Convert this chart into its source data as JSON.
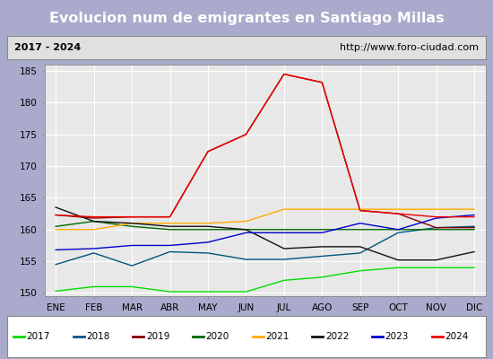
{
  "title": "Evolucion num de emigrantes en Santiago Millas",
  "subtitle_left": "2017 - 2024",
  "subtitle_right": "http://www.foro-ciudad.com",
  "months": [
    "ENE",
    "FEB",
    "MAR",
    "ABR",
    "MAY",
    "JUN",
    "JUL",
    "AGO",
    "SEP",
    "OCT",
    "NOV",
    "DIC"
  ],
  "ylim": [
    149.5,
    186
  ],
  "yticks": [
    150,
    155,
    160,
    165,
    170,
    175,
    180,
    185
  ],
  "series": {
    "2017": {
      "color": "#00dd00",
      "data": [
        150.3,
        151.0,
        151.0,
        150.2,
        150.2,
        150.2,
        152.0,
        152.5,
        153.5,
        154.0,
        154.0,
        154.0
      ]
    },
    "2018": {
      "color": "#005580",
      "data": [
        154.5,
        156.3,
        154.3,
        156.5,
        156.3,
        155.3,
        155.3,
        155.8,
        156.3,
        159.5,
        160.3,
        160.5
      ]
    },
    "2019": {
      "color": "#880000",
      "data": [
        162.3,
        161.8,
        162.0,
        162.0,
        172.3,
        175.0,
        184.5,
        183.2,
        163.0,
        162.5,
        160.3,
        160.3
      ]
    },
    "2020": {
      "color": "#006600",
      "data": [
        160.5,
        161.3,
        160.5,
        160.0,
        160.0,
        160.0,
        160.0,
        160.0,
        160.0,
        160.0,
        160.0,
        160.0
      ]
    },
    "2021": {
      "color": "#ffaa00",
      "data": [
        160.0,
        160.0,
        161.0,
        161.0,
        161.0,
        161.3,
        163.2,
        163.2,
        163.2,
        163.2,
        163.2,
        163.2
      ]
    },
    "2022": {
      "color": "#111111",
      "data": [
        163.5,
        161.3,
        161.0,
        160.5,
        160.5,
        160.0,
        157.0,
        157.3,
        157.3,
        155.2,
        155.2,
        156.5
      ]
    },
    "2023": {
      "color": "#0000cc",
      "data": [
        156.8,
        157.0,
        157.5,
        157.5,
        158.0,
        159.5,
        159.5,
        159.5,
        161.0,
        160.0,
        161.8,
        162.3
      ]
    },
    "2024": {
      "color": "#ee0000",
      "data": [
        162.3,
        162.0,
        162.0,
        162.0,
        172.3,
        175.0,
        184.5,
        183.2,
        163.0,
        162.5,
        162.0,
        162.0
      ]
    }
  },
  "bg_title": "#4f86c6",
  "bg_subtitle": "#e0e0e0",
  "bg_plot": "#e8e8e8",
  "grid_color": "#ffffff",
  "legend_order": [
    "2017",
    "2018",
    "2019",
    "2020",
    "2021",
    "2022",
    "2023",
    "2024"
  ],
  "fig_width": 5.5,
  "fig_height": 4.0,
  "dpi": 100
}
